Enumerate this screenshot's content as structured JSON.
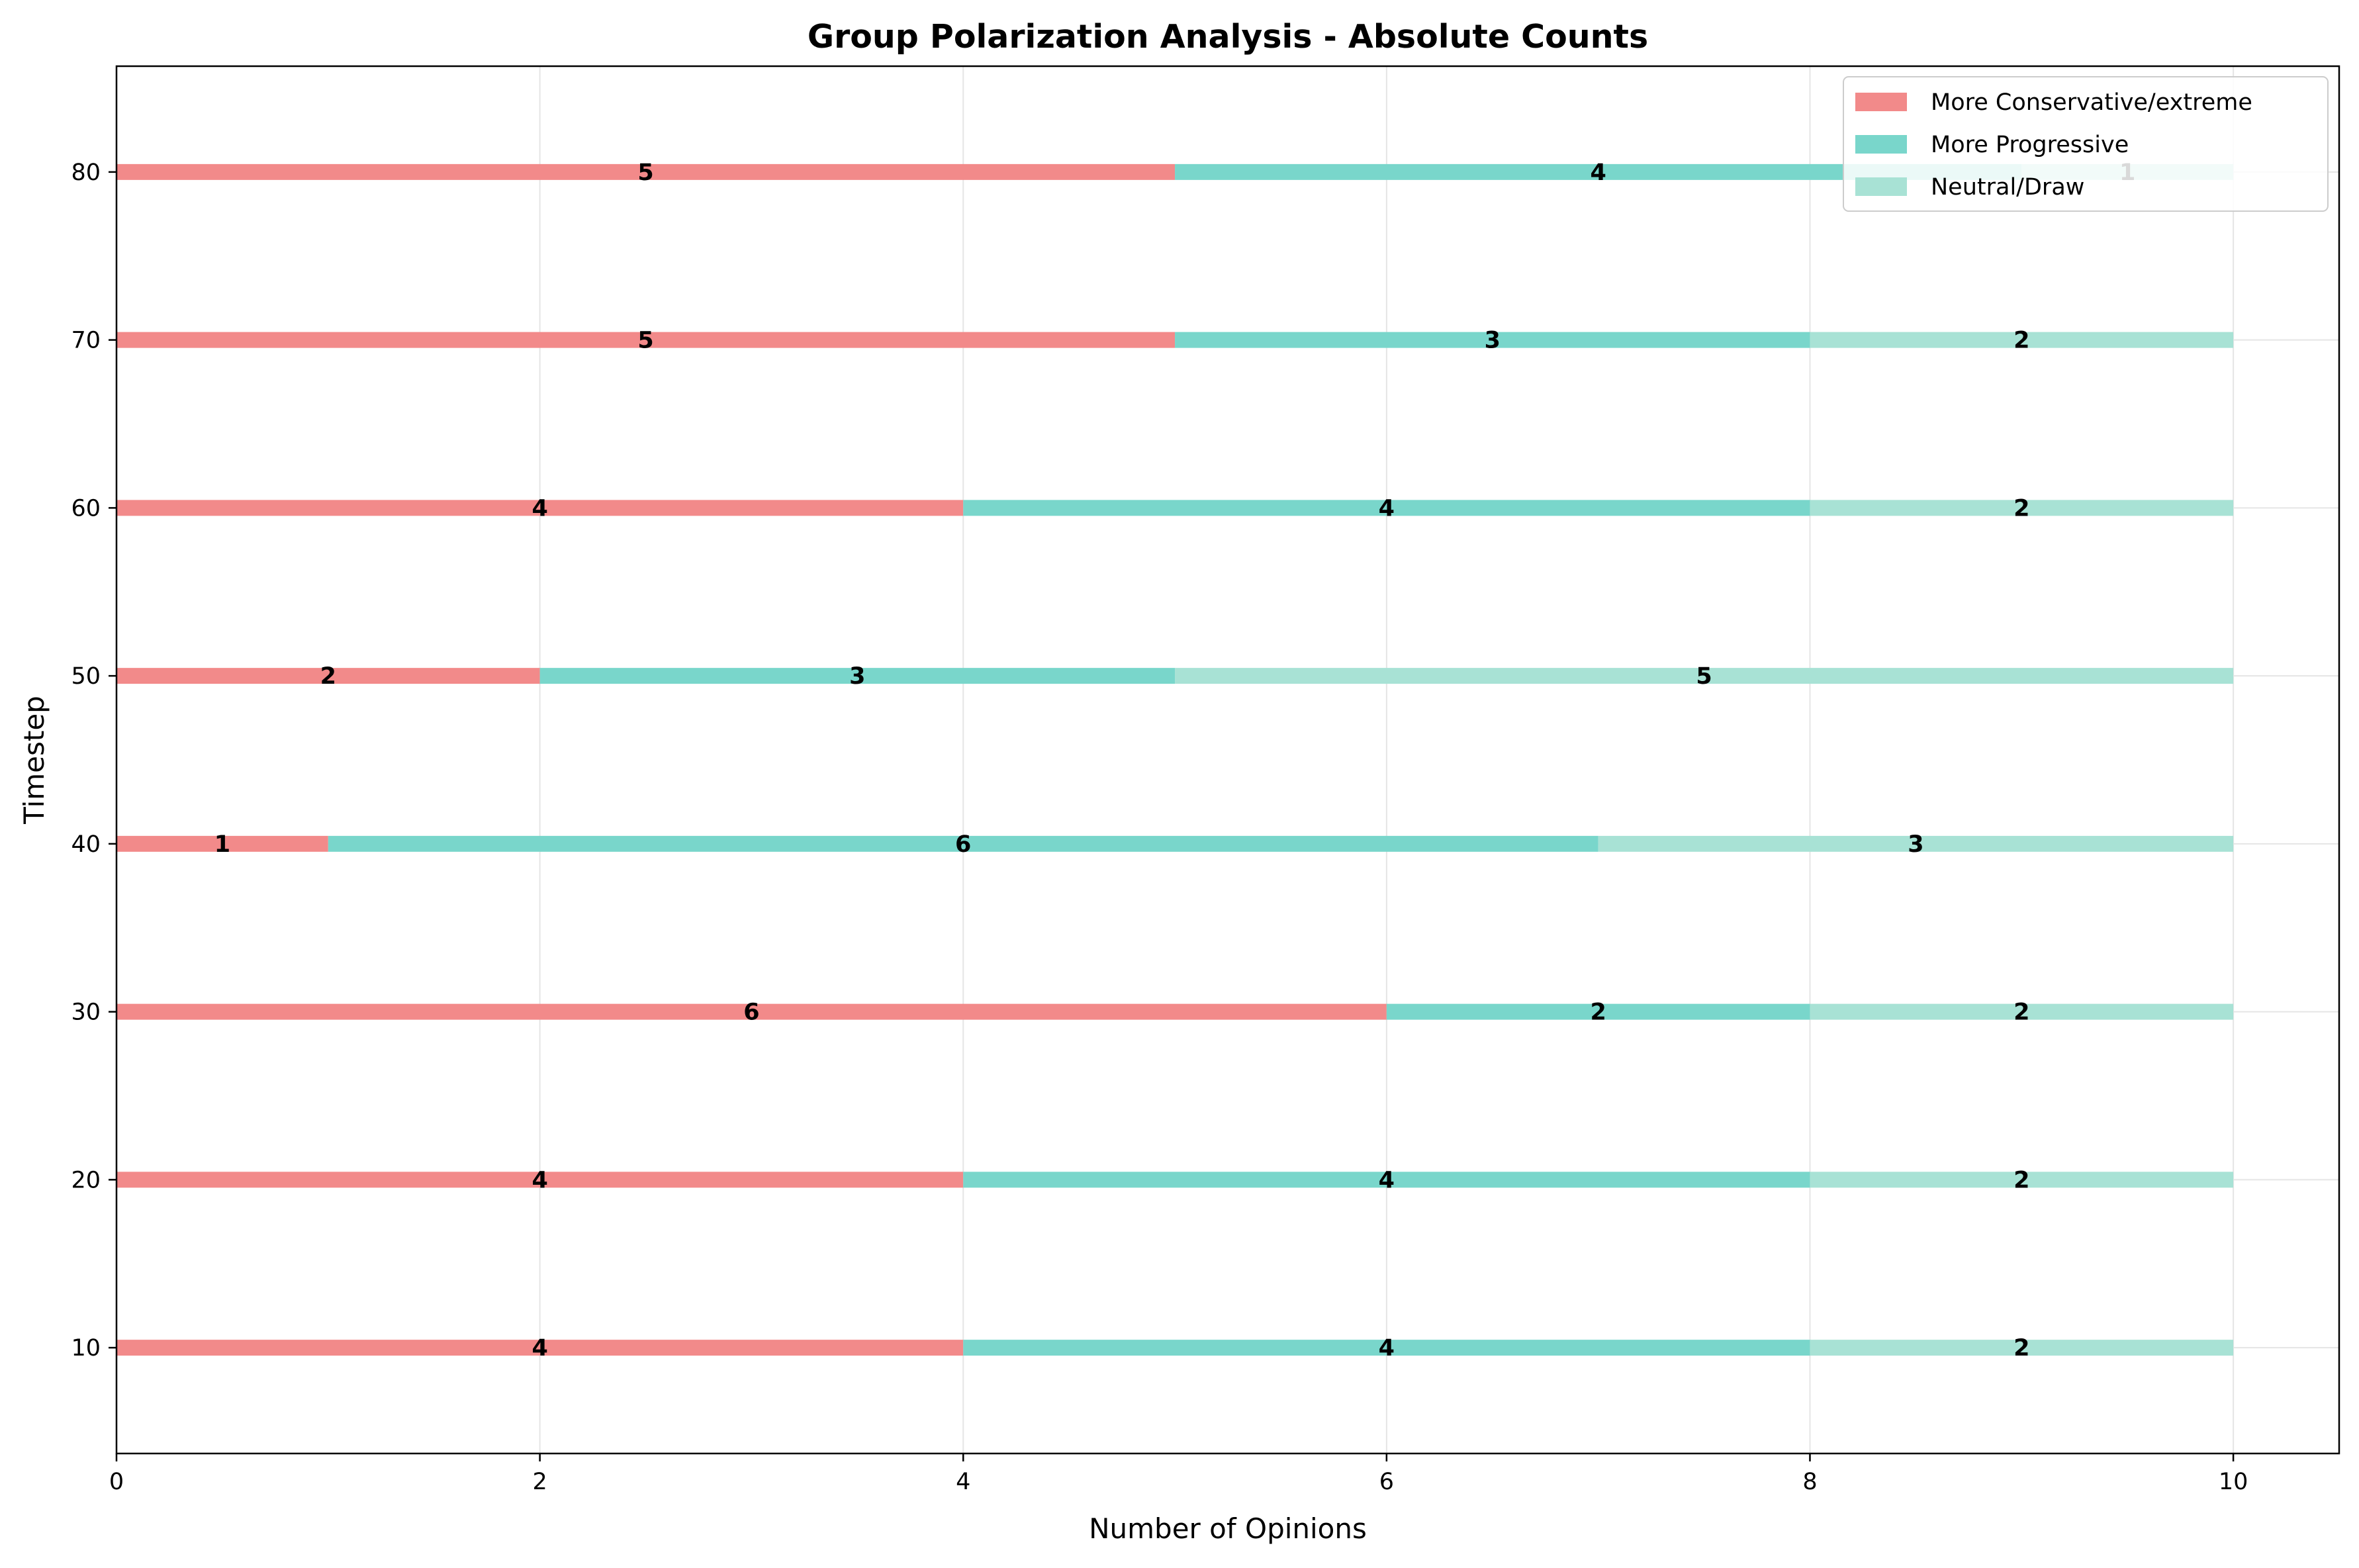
{
  "chart_data": {
    "type": "bar",
    "orientation": "horizontal",
    "stacked": true,
    "title": "Group Polarization Analysis - Absolute Counts",
    "xlabel": "Number of Opinions",
    "ylabel": "Timestep",
    "xlim": [
      0,
      10.5
    ],
    "xticks": [
      "0",
      "2",
      "4",
      "6",
      "8",
      "10"
    ],
    "categories": [
      "10",
      "20",
      "30",
      "40",
      "50",
      "60",
      "70",
      "80"
    ],
    "series": [
      {
        "name": "More Conservative/extreme",
        "color": "#f28a8a",
        "values": [
          4,
          4,
          6,
          1,
          2,
          4,
          5,
          5
        ]
      },
      {
        "name": "More Progressive",
        "color": "#79d6cb",
        "values": [
          4,
          4,
          2,
          6,
          3,
          4,
          3,
          4
        ]
      },
      {
        "name": "Neutral/Draw",
        "color": "#a8e2d5",
        "values": [
          2,
          2,
          2,
          3,
          5,
          2,
          2,
          1
        ]
      }
    ],
    "grid": true,
    "legend_position": "top-right"
  }
}
